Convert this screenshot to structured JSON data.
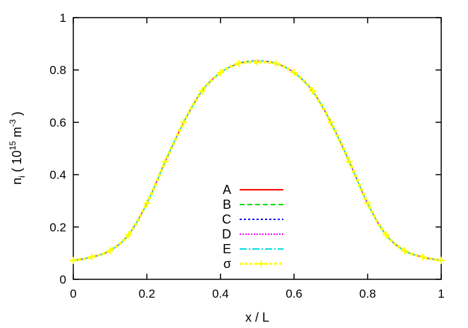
{
  "chart_data": {
    "type": "line",
    "xlabel": "x / L",
    "ylabel": {
      "base": "n",
      "sub": "i",
      "open": " ( 10",
      "exp1": "15",
      "mid": " m",
      "exp2": "-3",
      "close": " )"
    },
    "xlim": [
      0,
      1
    ],
    "ylim": [
      0,
      1
    ],
    "xticks": [
      0,
      0.2,
      0.4,
      0.6,
      0.8,
      1
    ],
    "yticks": [
      0,
      0.2,
      0.4,
      0.6,
      0.8,
      1
    ],
    "xtick_labels": [
      "0",
      "0.2",
      "0.4",
      "0.6",
      "0.8",
      "1"
    ],
    "ytick_labels": [
      "0",
      "0.2",
      "0.4",
      "0.6",
      "0.8",
      "1"
    ],
    "grid": false,
    "legend_position": "bottom-center",
    "x": [
      0,
      0.05,
      0.1,
      0.15,
      0.2,
      0.25,
      0.3,
      0.35,
      0.4,
      0.45,
      0.5,
      0.55,
      0.6,
      0.65,
      0.7,
      0.75,
      0.8,
      0.85,
      0.9,
      0.95,
      1
    ],
    "series": [
      {
        "name": "A",
        "color": "#ff0000",
        "dash": "none",
        "marker": "none",
        "values": [
          0.072,
          0.085,
          0.11,
          0.17,
          0.29,
          0.45,
          0.6,
          0.72,
          0.79,
          0.825,
          0.835,
          0.825,
          0.79,
          0.72,
          0.6,
          0.45,
          0.29,
          0.17,
          0.11,
          0.085,
          0.072
        ]
      },
      {
        "name": "B",
        "color": "#00dd00",
        "dash": "7 4",
        "marker": "none",
        "values": [
          0.071,
          0.084,
          0.11,
          0.17,
          0.29,
          0.45,
          0.6,
          0.72,
          0.79,
          0.824,
          0.834,
          0.826,
          0.79,
          0.72,
          0.6,
          0.45,
          0.29,
          0.17,
          0.11,
          0.084,
          0.071
        ]
      },
      {
        "name": "C",
        "color": "#0000ff",
        "dash": "3 3",
        "marker": "none",
        "values": [
          0.072,
          0.085,
          0.11,
          0.17,
          0.29,
          0.45,
          0.6,
          0.72,
          0.79,
          0.825,
          0.835,
          0.825,
          0.79,
          0.72,
          0.6,
          0.45,
          0.29,
          0.17,
          0.11,
          0.085,
          0.072
        ]
      },
      {
        "name": "D",
        "color": "#ff00ff",
        "dash": "2 2",
        "marker": "none",
        "values": [
          0.072,
          0.085,
          0.11,
          0.17,
          0.29,
          0.45,
          0.6,
          0.72,
          0.79,
          0.825,
          0.835,
          0.825,
          0.79,
          0.72,
          0.6,
          0.45,
          0.29,
          0.17,
          0.11,
          0.085,
          0.072
        ]
      },
      {
        "name": "E",
        "color": "#00dddd",
        "dash": "10 3 2 3",
        "marker": "none",
        "values": [
          0.072,
          0.085,
          0.11,
          0.17,
          0.29,
          0.45,
          0.6,
          0.72,
          0.79,
          0.825,
          0.835,
          0.825,
          0.79,
          0.72,
          0.6,
          0.45,
          0.29,
          0.17,
          0.11,
          0.085,
          0.072
        ]
      },
      {
        "name": "σ",
        "color": "#ffff00",
        "dash": "4 3",
        "marker": "plus",
        "values": [
          0.072,
          0.085,
          0.11,
          0.17,
          0.29,
          0.45,
          0.6,
          0.72,
          0.79,
          0.825,
          0.83,
          0.825,
          0.79,
          0.72,
          0.6,
          0.45,
          0.29,
          0.17,
          0.11,
          0.085,
          0.072
        ]
      }
    ]
  }
}
